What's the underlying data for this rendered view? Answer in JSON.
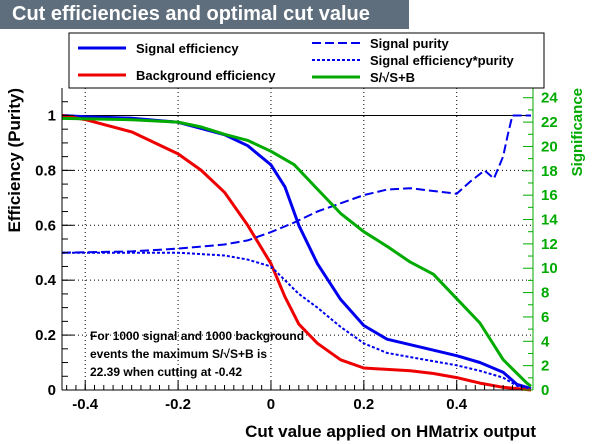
{
  "chart_data": {
    "type": "line",
    "title": "Cut efficiencies and optimal cut value",
    "xlabel": "Cut value applied on HMatrix output",
    "ylabel": "Efficiency (Purity)",
    "y2label": "Significance",
    "xlim": [
      -0.45,
      0.56
    ],
    "ylim": [
      0,
      1.1
    ],
    "y2lim": [
      0,
      24.8
    ],
    "xticks": [
      "-0.4",
      "-0.2",
      "0",
      "0.2",
      "0.4"
    ],
    "yticks": [
      "0",
      "0.2",
      "0.4",
      "0.6",
      "0.8",
      "1"
    ],
    "y2ticks": [
      "0",
      "2",
      "4",
      "6",
      "8",
      "10",
      "12",
      "14",
      "16",
      "18",
      "20",
      "22",
      "24"
    ],
    "grid": true,
    "legend_position": "top",
    "annotation": [
      "For 1000 signal and 1000 background",
      "events the maximum S/√S+B is",
      "22.39 when cutting at -0.42"
    ],
    "series": [
      {
        "name": "Signal efficiency",
        "color": "#0000ee",
        "style": "solid",
        "axis": "left",
        "x": [
          -0.45,
          -0.4,
          -0.3,
          -0.2,
          -0.1,
          -0.05,
          0,
          0.03,
          0.06,
          0.1,
          0.15,
          0.2,
          0.25,
          0.3,
          0.35,
          0.4,
          0.45,
          0.5,
          0.53,
          0.56
        ],
        "y": [
          1.0,
          0.995,
          0.99,
          0.975,
          0.93,
          0.89,
          0.82,
          0.74,
          0.6,
          0.46,
          0.33,
          0.235,
          0.185,
          0.165,
          0.145,
          0.125,
          0.1,
          0.065,
          0.02,
          0.005
        ]
      },
      {
        "name": "Background efficiency",
        "color": "#ee0000",
        "style": "solid",
        "axis": "left",
        "x": [
          -0.45,
          -0.4,
          -0.3,
          -0.2,
          -0.15,
          -0.1,
          -0.05,
          0,
          0.03,
          0.06,
          0.1,
          0.15,
          0.2,
          0.25,
          0.3,
          0.35,
          0.4,
          0.45,
          0.5,
          0.56
        ],
        "y": [
          1.0,
          0.985,
          0.94,
          0.86,
          0.8,
          0.72,
          0.6,
          0.46,
          0.34,
          0.24,
          0.17,
          0.11,
          0.08,
          0.075,
          0.07,
          0.06,
          0.045,
          0.025,
          0.01,
          0.0
        ]
      },
      {
        "name": "Signal purity",
        "color": "#0000ee",
        "style": "dashed",
        "axis": "left",
        "x": [
          -0.45,
          -0.3,
          -0.2,
          -0.1,
          -0.05,
          0,
          0.05,
          0.1,
          0.15,
          0.2,
          0.25,
          0.3,
          0.35,
          0.4,
          0.43,
          0.46,
          0.48,
          0.5,
          0.51,
          0.52,
          0.56
        ],
        "y": [
          0.5,
          0.505,
          0.515,
          0.53,
          0.545,
          0.575,
          0.61,
          0.65,
          0.68,
          0.71,
          0.73,
          0.735,
          0.725,
          0.715,
          0.76,
          0.8,
          0.77,
          0.85,
          0.93,
          1.0,
          1.0
        ]
      },
      {
        "name": "Signal efficiency*purity",
        "color": "#0000ee",
        "style": "dotted",
        "axis": "left",
        "x": [
          -0.45,
          -0.4,
          -0.3,
          -0.2,
          -0.1,
          -0.05,
          0,
          0.03,
          0.06,
          0.1,
          0.15,
          0.2,
          0.25,
          0.3,
          0.35,
          0.4,
          0.45,
          0.5,
          0.53,
          0.56
        ],
        "y": [
          0.5,
          0.5,
          0.5,
          0.5,
          0.49,
          0.475,
          0.45,
          0.4,
          0.35,
          0.3,
          0.23,
          0.17,
          0.135,
          0.12,
          0.105,
          0.09,
          0.07,
          0.045,
          0.015,
          0.005
        ]
      },
      {
        "name": "S/√S+B",
        "color": "#00aa00",
        "style": "solid",
        "axis": "right",
        "x": [
          -0.45,
          -0.3,
          -0.2,
          -0.15,
          -0.1,
          -0.05,
          0,
          0.05,
          0.1,
          0.15,
          0.2,
          0.25,
          0.3,
          0.35,
          0.4,
          0.45,
          0.5,
          0.55,
          0.56
        ],
        "y": [
          22.3,
          22.2,
          22.0,
          21.6,
          21.0,
          20.5,
          19.6,
          18.5,
          16.5,
          14.5,
          13.0,
          11.8,
          10.5,
          9.5,
          7.5,
          5.5,
          2.5,
          0.6,
          0.3
        ]
      }
    ]
  }
}
